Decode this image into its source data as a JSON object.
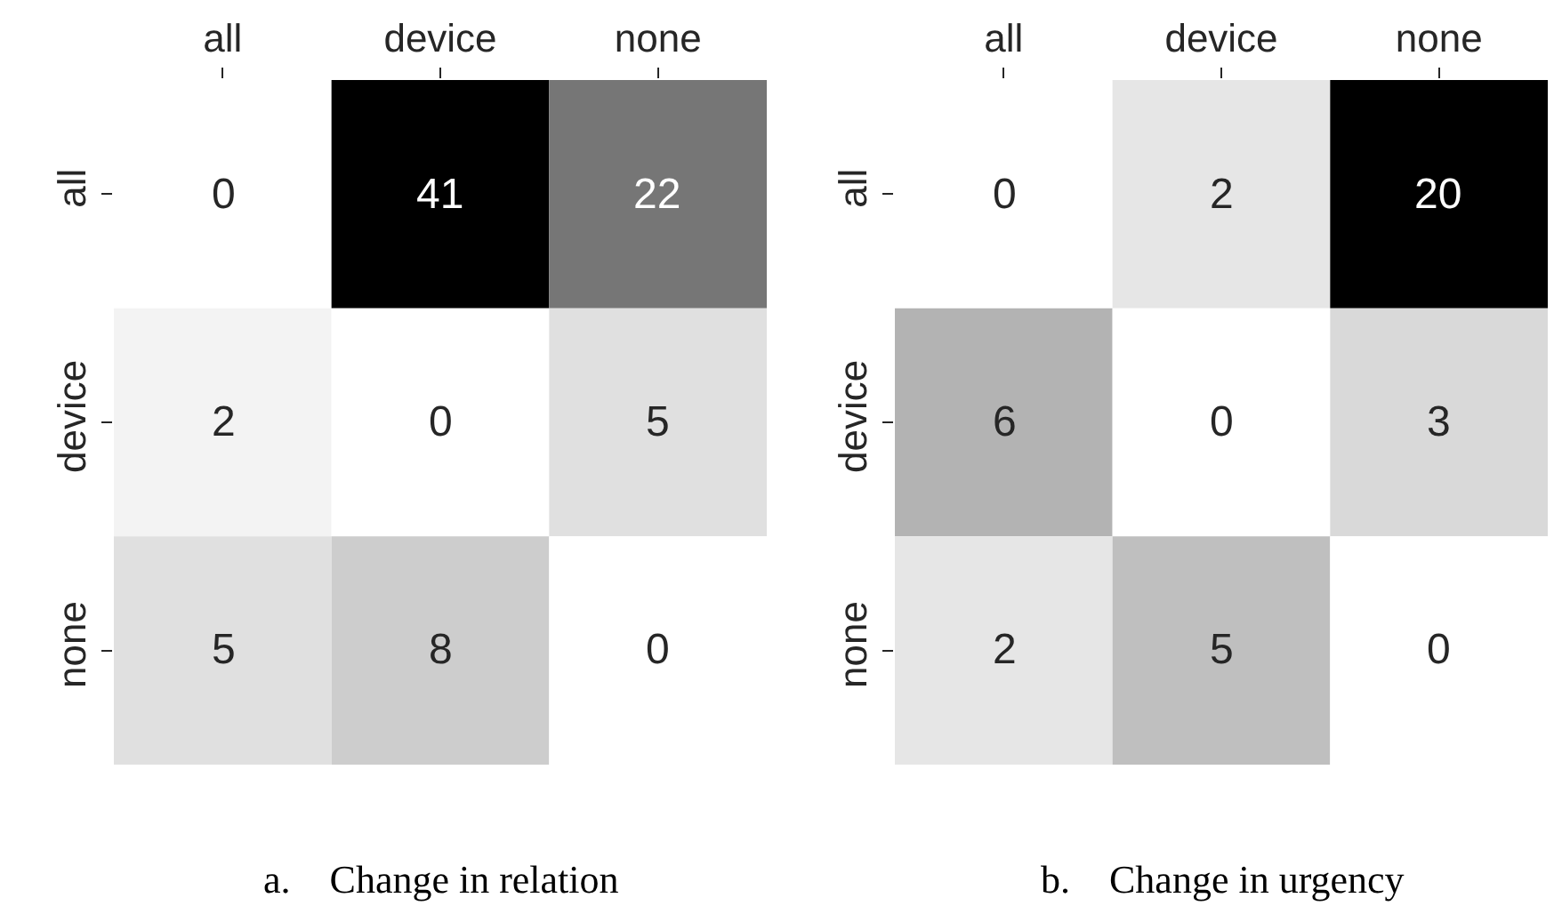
{
  "chart_data": [
    {
      "type": "heatmap",
      "title": "a.    Change in relation",
      "categories": [
        "all",
        "device",
        "none"
      ],
      "y_categories": [
        "all",
        "device",
        "none"
      ],
      "cells": [
        [
          0,
          41,
          22
        ],
        [
          2,
          0,
          5
        ],
        [
          5,
          8,
          0
        ]
      ],
      "data_labels": true
    },
    {
      "type": "heatmap",
      "title": "b.    Change in urgency",
      "categories": [
        "all",
        "device",
        "none"
      ],
      "y_categories": [
        "all",
        "device",
        "none"
      ],
      "cells": [
        [
          0,
          2,
          20
        ],
        [
          6,
          0,
          3
        ],
        [
          2,
          5,
          0
        ]
      ],
      "data_labels": true
    }
  ]
}
